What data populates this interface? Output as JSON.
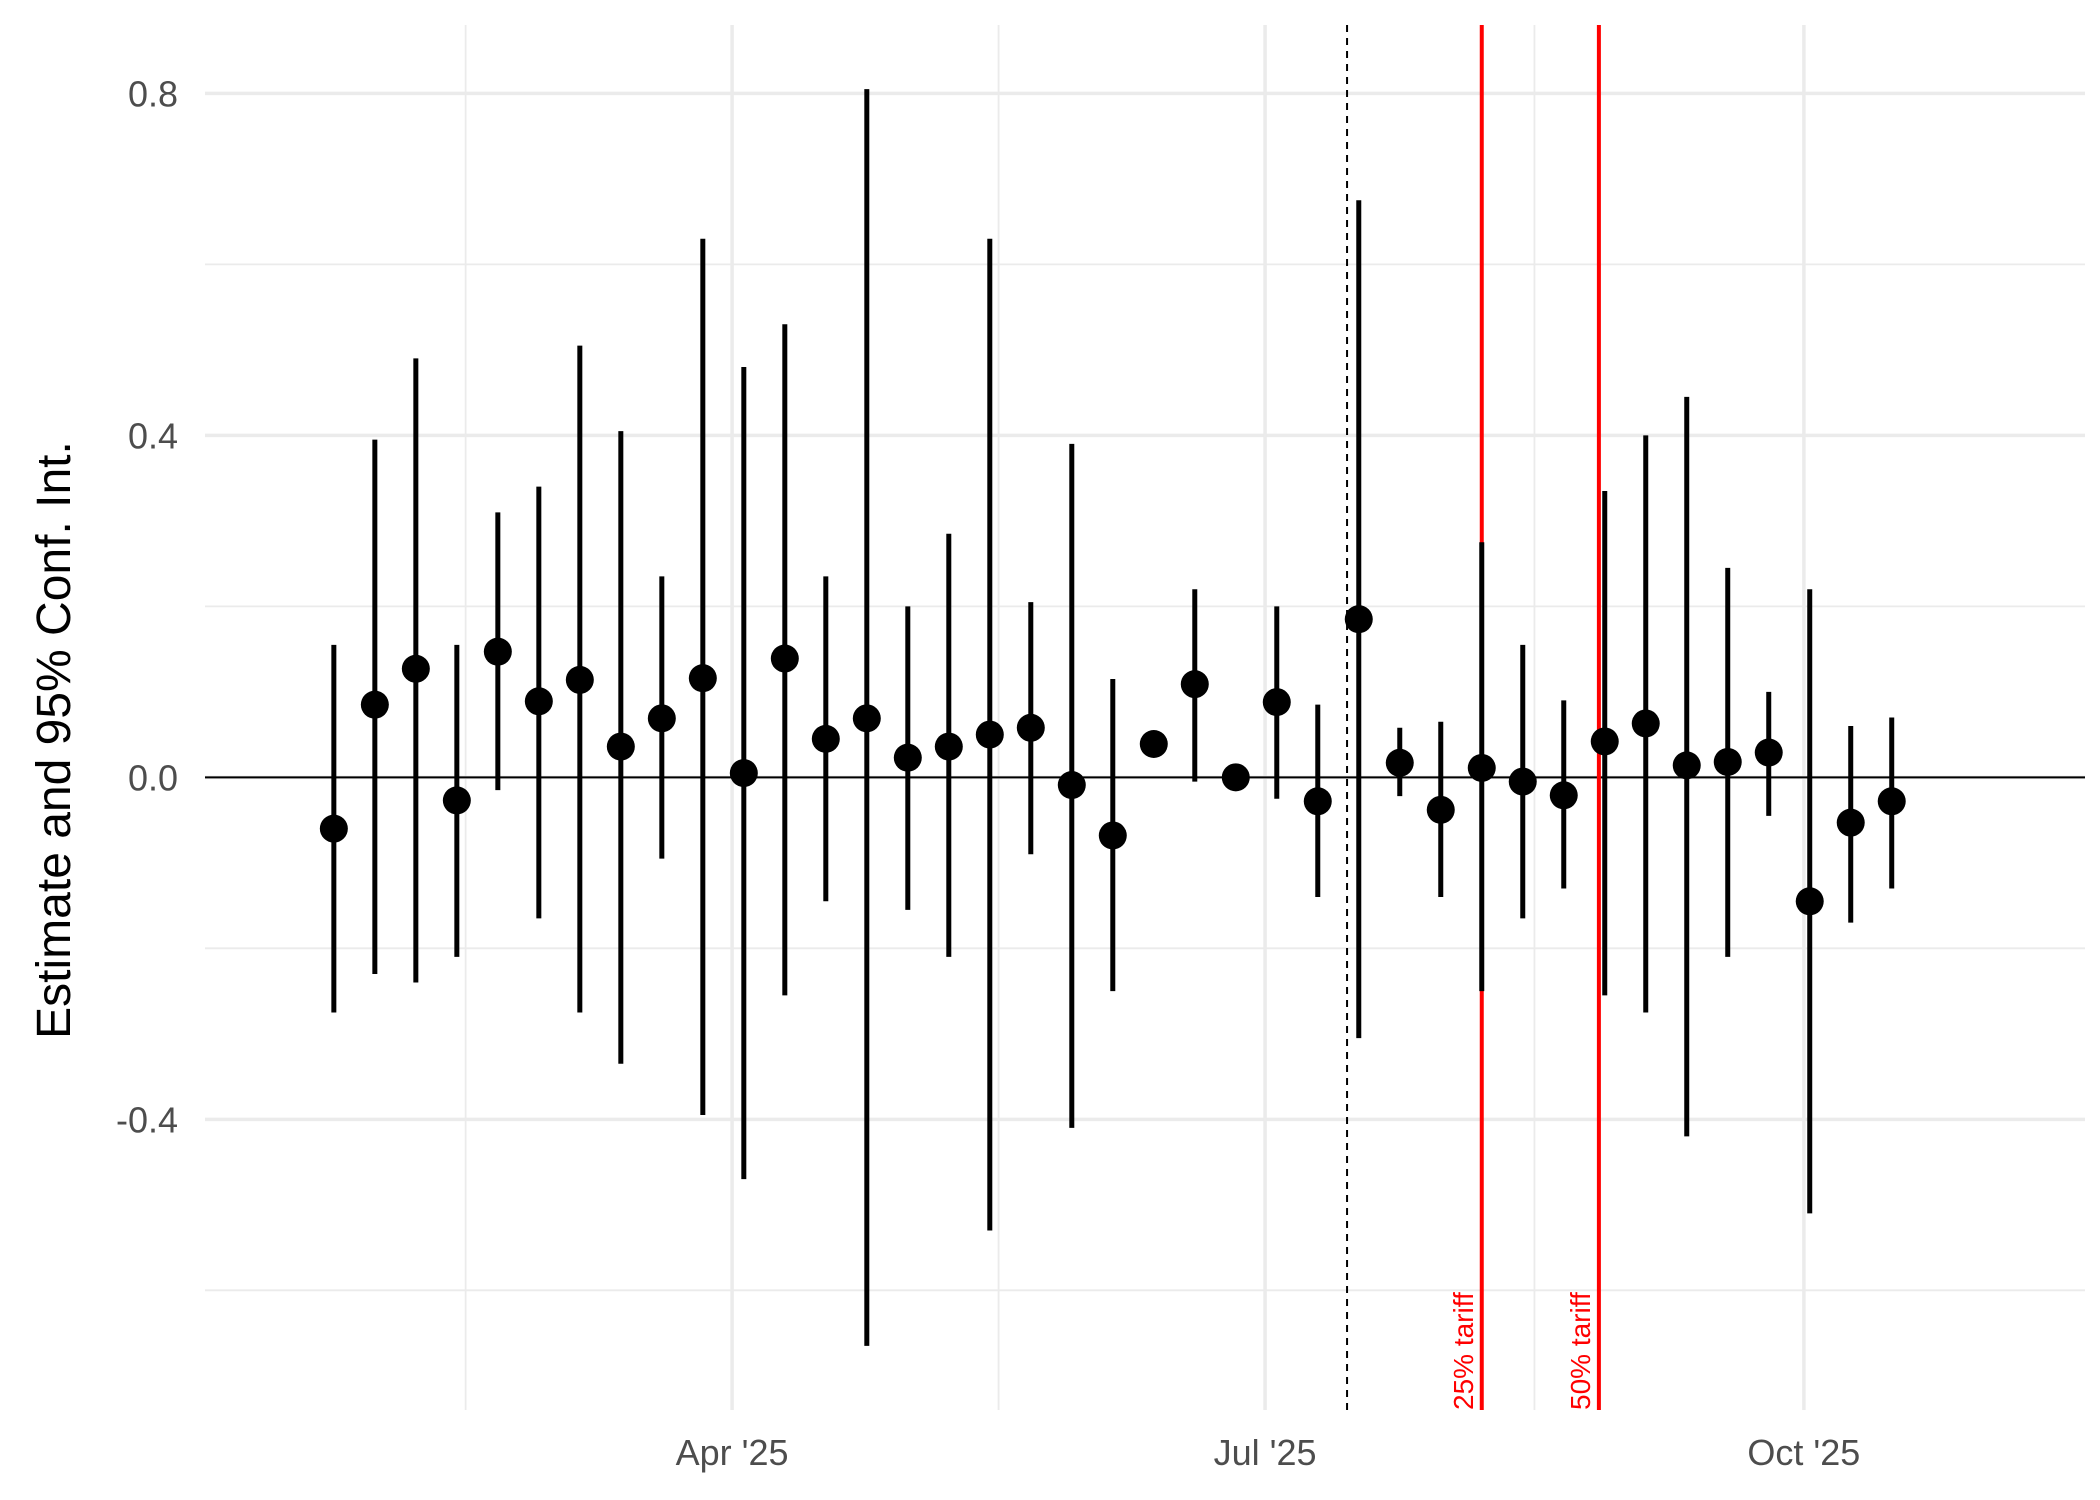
{
  "chart_data": {
    "type": "scatter",
    "subtype": "point-range (estimate with 95% confidence interval)",
    "title": "",
    "xlabel": "",
    "ylabel": "Estimate and 95% Conf. Int.",
    "x_tick_labels": [
      "Apr '25",
      "Jul '25",
      "Oct '25"
    ],
    "y_tick_labels": [
      "-0.4",
      "0.0",
      "0.4",
      "0.8"
    ],
    "y_ticks": [
      -0.4,
      0.0,
      0.4,
      0.8
    ],
    "x_tick_dates": [
      "2025-04-01",
      "2025-07-01",
      "2025-10-01"
    ],
    "xlim": [
      "2025-01-01",
      "2025-11-18"
    ],
    "ylim": [
      -0.74,
      0.88
    ],
    "grid": true,
    "zero_line": 0.0,
    "reference_line_dashed": "2025-07-15",
    "annotations": [
      {
        "date": "2025-08-07",
        "label": "25% tariff",
        "color": "#ff0000"
      },
      {
        "date": "2025-08-27",
        "label": "50% tariff",
        "color": "#ff0000"
      }
    ],
    "series": [
      {
        "points": [
          {
            "x": "2025-01-23",
            "y": -0.06,
            "lo": -0.275,
            "hi": 0.155
          },
          {
            "x": "2025-01-30",
            "y": 0.085,
            "lo": -0.23,
            "hi": 0.395
          },
          {
            "x": "2025-02-06",
            "y": 0.127,
            "lo": -0.24,
            "hi": 0.49
          },
          {
            "x": "2025-02-13",
            "y": -0.027,
            "lo": -0.21,
            "hi": 0.155
          },
          {
            "x": "2025-02-20",
            "y": 0.147,
            "lo": -0.015,
            "hi": 0.31
          },
          {
            "x": "2025-02-27",
            "y": 0.089,
            "lo": -0.165,
            "hi": 0.34
          },
          {
            "x": "2025-03-06",
            "y": 0.114,
            "lo": -0.275,
            "hi": 0.505
          },
          {
            "x": "2025-03-13",
            "y": 0.036,
            "lo": -0.335,
            "hi": 0.405
          },
          {
            "x": "2025-03-20",
            "y": 0.069,
            "lo": -0.095,
            "hi": 0.235
          },
          {
            "x": "2025-03-27",
            "y": 0.116,
            "lo": -0.395,
            "hi": 0.63
          },
          {
            "x": "2025-04-03",
            "y": 0.005,
            "lo": -0.47,
            "hi": 0.48
          },
          {
            "x": "2025-04-10",
            "y": 0.139,
            "lo": -0.255,
            "hi": 0.53
          },
          {
            "x": "2025-04-17",
            "y": 0.045,
            "lo": -0.145,
            "hi": 0.235
          },
          {
            "x": "2025-04-24",
            "y": 0.069,
            "lo": -0.665,
            "hi": 0.805
          },
          {
            "x": "2025-05-01",
            "y": 0.023,
            "lo": -0.155,
            "hi": 0.2
          },
          {
            "x": "2025-05-08",
            "y": 0.036,
            "lo": -0.21,
            "hi": 0.285
          },
          {
            "x": "2025-05-15",
            "y": 0.05,
            "lo": -0.53,
            "hi": 0.63
          },
          {
            "x": "2025-05-22",
            "y": 0.058,
            "lo": -0.09,
            "hi": 0.205
          },
          {
            "x": "2025-05-29",
            "y": -0.009,
            "lo": -0.41,
            "hi": 0.39
          },
          {
            "x": "2025-06-05",
            "y": -0.068,
            "lo": -0.25,
            "hi": 0.115
          },
          {
            "x": "2025-06-12",
            "y": 0.039,
            "lo": 0.039,
            "hi": 0.039
          },
          {
            "x": "2025-06-19",
            "y": 0.109,
            "lo": -0.005,
            "hi": 0.22
          },
          {
            "x": "2025-06-26",
            "y": 0.0,
            "lo": 0.0,
            "hi": 0.0
          },
          {
            "x": "2025-07-03",
            "y": 0.088,
            "lo": -0.025,
            "hi": 0.2
          },
          {
            "x": "2025-07-10",
            "y": -0.028,
            "lo": -0.14,
            "hi": 0.085
          },
          {
            "x": "2025-07-17",
            "y": 0.185,
            "lo": -0.305,
            "hi": 0.675
          },
          {
            "x": "2025-07-24",
            "y": 0.017,
            "lo": -0.022,
            "hi": 0.058
          },
          {
            "x": "2025-07-31",
            "y": -0.038,
            "lo": -0.14,
            "hi": 0.065
          },
          {
            "x": "2025-08-07",
            "y": 0.011,
            "lo": -0.25,
            "hi": 0.275
          },
          {
            "x": "2025-08-14",
            "y": -0.005,
            "lo": -0.165,
            "hi": 0.155
          },
          {
            "x": "2025-08-21",
            "y": -0.021,
            "lo": -0.13,
            "hi": 0.09
          },
          {
            "x": "2025-08-28",
            "y": 0.042,
            "lo": -0.255,
            "hi": 0.335
          },
          {
            "x": "2025-09-04",
            "y": 0.063,
            "lo": -0.275,
            "hi": 0.4
          },
          {
            "x": "2025-09-11",
            "y": 0.014,
            "lo": -0.42,
            "hi": 0.445
          },
          {
            "x": "2025-09-18",
            "y": 0.018,
            "lo": -0.21,
            "hi": 0.245
          },
          {
            "x": "2025-09-25",
            "y": 0.029,
            "lo": -0.045,
            "hi": 0.1
          },
          {
            "x": "2025-10-02",
            "y": -0.145,
            "lo": -0.51,
            "hi": 0.22
          },
          {
            "x": "2025-10-09",
            "y": -0.053,
            "lo": -0.17,
            "hi": 0.06
          },
          {
            "x": "2025-10-16",
            "y": -0.028,
            "lo": -0.13,
            "hi": 0.07
          }
        ]
      }
    ],
    "colors": {
      "points": "#000000",
      "grid": "#ebebeb",
      "annotation": "#ff0000",
      "tick_text": "#4d4d4d"
    }
  }
}
